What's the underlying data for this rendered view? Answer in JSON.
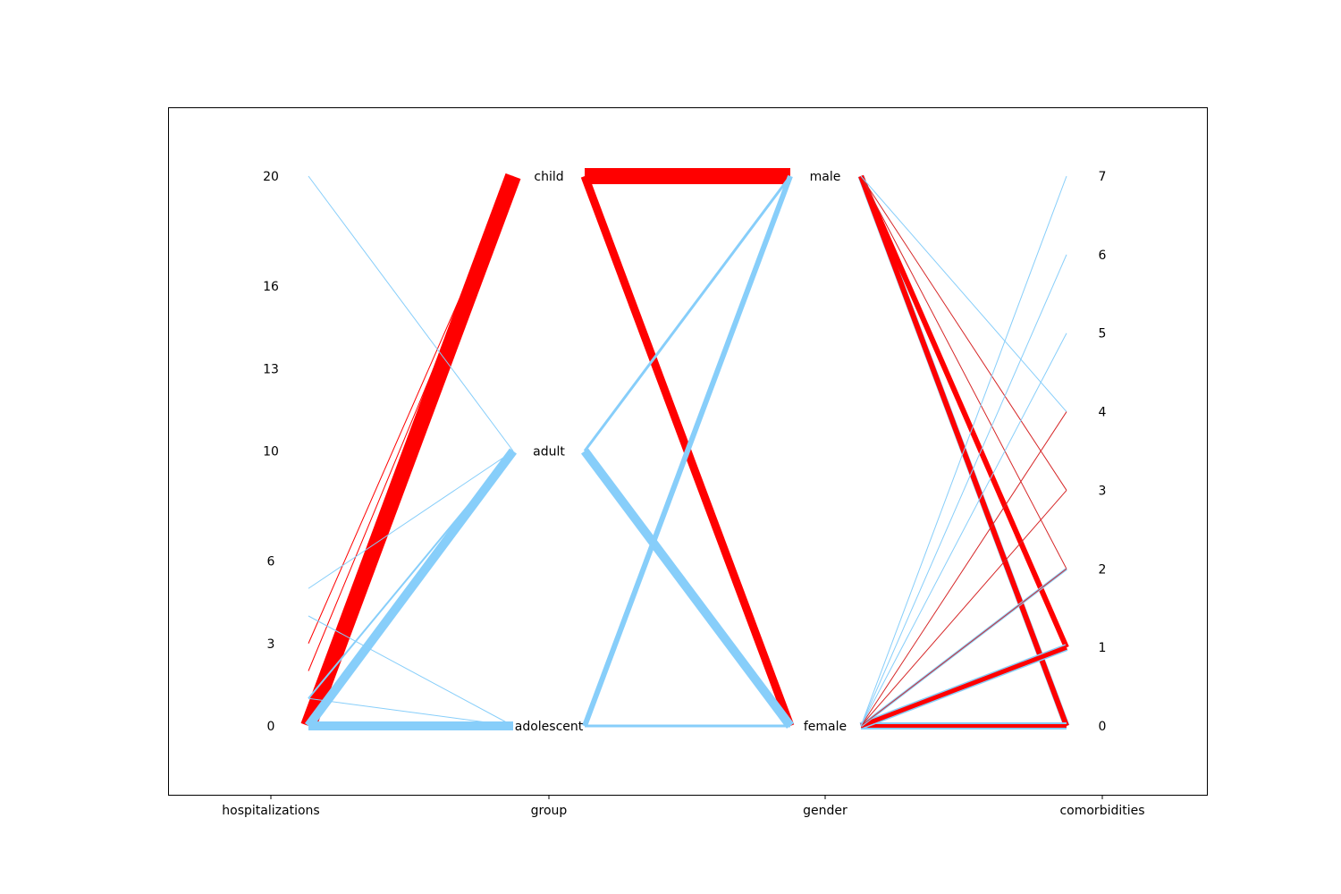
{
  "chart_data": {
    "type": "parallel-coordinates",
    "title": "",
    "axes": [
      {
        "name": "hospitalizations",
        "kind": "numeric",
        "ticks": [
          0,
          3,
          6,
          10,
          13,
          16,
          20
        ],
        "range": [
          0,
          20
        ]
      },
      {
        "name": "group",
        "kind": "categorical",
        "categories": [
          "adolescent",
          "adult",
          "child"
        ]
      },
      {
        "name": "gender",
        "kind": "categorical",
        "categories": [
          "female",
          "male"
        ]
      },
      {
        "name": "comorbidities",
        "kind": "numeric",
        "ticks": [
          0,
          1,
          2,
          3,
          4,
          5,
          6,
          7
        ],
        "range": [
          0,
          7
        ]
      }
    ],
    "colors": {
      "red_class": "#ff0000",
      "blue_class": "#87cefa",
      "thin_red": "#d62728"
    },
    "segments": [
      {
        "from": [
          "hospitalizations",
          0
        ],
        "to": [
          "group",
          "child"
        ],
        "color": "#ff0000",
        "weight": 18
      },
      {
        "from": [
          "hospitalizations",
          3
        ],
        "to": [
          "group",
          "child"
        ],
        "color": "#ff0000",
        "weight": 1
      },
      {
        "from": [
          "hospitalizations",
          2
        ],
        "to": [
          "group",
          "child"
        ],
        "color": "#ff0000",
        "weight": 1
      },
      {
        "from": [
          "hospitalizations",
          20
        ],
        "to": [
          "group",
          "adult"
        ],
        "color": "#87cefa",
        "weight": 1
      },
      {
        "from": [
          "hospitalizations",
          5
        ],
        "to": [
          "group",
          "adult"
        ],
        "color": "#87cefa",
        "weight": 1
      },
      {
        "from": [
          "hospitalizations",
          0
        ],
        "to": [
          "group",
          "adult"
        ],
        "color": "#87cefa",
        "weight": 10
      },
      {
        "from": [
          "hospitalizations",
          1
        ],
        "to": [
          "group",
          "adult"
        ],
        "color": "#87cefa",
        "weight": 2
      },
      {
        "from": [
          "hospitalizations",
          4
        ],
        "to": [
          "group",
          "adolescent"
        ],
        "color": "#87cefa",
        "weight": 1
      },
      {
        "from": [
          "hospitalizations",
          1
        ],
        "to": [
          "group",
          "adolescent"
        ],
        "color": "#87cefa",
        "weight": 1
      },
      {
        "from": [
          "hospitalizations",
          0
        ],
        "to": [
          "group",
          "adolescent"
        ],
        "color": "#87cefa",
        "weight": 10
      },
      {
        "from": [
          "group",
          "child"
        ],
        "to": [
          "gender",
          "male"
        ],
        "color": "#ff0000",
        "weight": 18
      },
      {
        "from": [
          "group",
          "child"
        ],
        "to": [
          "gender",
          "female"
        ],
        "color": "#ff0000",
        "weight": 9
      },
      {
        "from": [
          "group",
          "adult"
        ],
        "to": [
          "gender",
          "male"
        ],
        "color": "#87cefa",
        "weight": 3
      },
      {
        "from": [
          "group",
          "adult"
        ],
        "to": [
          "gender",
          "female"
        ],
        "color": "#87cefa",
        "weight": 10
      },
      {
        "from": [
          "group",
          "adolescent"
        ],
        "to": [
          "gender",
          "male"
        ],
        "color": "#87cefa",
        "weight": 6
      },
      {
        "from": [
          "group",
          "adolescent"
        ],
        "to": [
          "gender",
          "female"
        ],
        "color": "#87cefa",
        "weight": 3
      },
      {
        "from": [
          "gender",
          "male"
        ],
        "to": [
          "comorbidities",
          0
        ],
        "color": "#87cefa",
        "weight": 7
      },
      {
        "from": [
          "gender",
          "male"
        ],
        "to": [
          "comorbidities",
          0
        ],
        "color": "#ff0000",
        "weight": 6
      },
      {
        "from": [
          "gender",
          "male"
        ],
        "to": [
          "comorbidities",
          1
        ],
        "color": "#ff0000",
        "weight": 6
      },
      {
        "from": [
          "gender",
          "male"
        ],
        "to": [
          "comorbidities",
          2
        ],
        "color": "#d62728",
        "weight": 1
      },
      {
        "from": [
          "gender",
          "male"
        ],
        "to": [
          "comorbidities",
          3
        ],
        "color": "#d62728",
        "weight": 1
      },
      {
        "from": [
          "gender",
          "male"
        ],
        "to": [
          "comorbidities",
          4
        ],
        "color": "#87cefa",
        "weight": 1
      },
      {
        "from": [
          "gender",
          "female"
        ],
        "to": [
          "comorbidities",
          0
        ],
        "color": "#87cefa",
        "weight": 8
      },
      {
        "from": [
          "gender",
          "female"
        ],
        "to": [
          "comorbidities",
          0
        ],
        "color": "#ff0000",
        "weight": 4
      },
      {
        "from": [
          "gender",
          "female"
        ],
        "to": [
          "comorbidities",
          1
        ],
        "color": "#87cefa",
        "weight": 8
      },
      {
        "from": [
          "gender",
          "female"
        ],
        "to": [
          "comorbidities",
          1
        ],
        "color": "#ff0000",
        "weight": 5
      },
      {
        "from": [
          "gender",
          "female"
        ],
        "to": [
          "comorbidities",
          2
        ],
        "color": "#87cefa",
        "weight": 3
      },
      {
        "from": [
          "gender",
          "female"
        ],
        "to": [
          "comorbidities",
          2
        ],
        "color": "#d62728",
        "weight": 1
      },
      {
        "from": [
          "gender",
          "female"
        ],
        "to": [
          "comorbidities",
          3
        ],
        "color": "#d62728",
        "weight": 1
      },
      {
        "from": [
          "gender",
          "female"
        ],
        "to": [
          "comorbidities",
          4
        ],
        "color": "#d62728",
        "weight": 1
      },
      {
        "from": [
          "gender",
          "female"
        ],
        "to": [
          "comorbidities",
          5
        ],
        "color": "#87cefa",
        "weight": 1
      },
      {
        "from": [
          "gender",
          "female"
        ],
        "to": [
          "comorbidities",
          6
        ],
        "color": "#87cefa",
        "weight": 1
      },
      {
        "from": [
          "gender",
          "female"
        ],
        "to": [
          "comorbidities",
          7
        ],
        "color": "#87cefa",
        "weight": 1
      }
    ]
  }
}
